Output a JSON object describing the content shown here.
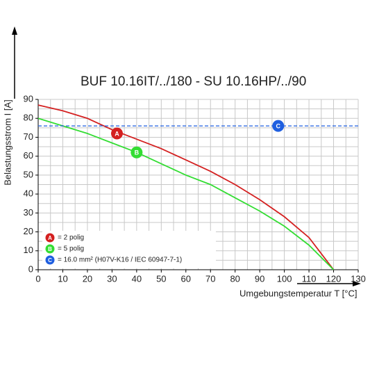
{
  "chart_data": {
    "type": "line",
    "title": "BUF 10.16IT/../180 - SU 10.16HP/../90",
    "x_label": "Umgebungstemperatur T [°C]",
    "y_label": "Belastungsstrom I [A]",
    "xlim": [
      0,
      130
    ],
    "ylim": [
      0,
      90
    ],
    "xticks": [
      0,
      10,
      20,
      30,
      40,
      50,
      60,
      70,
      80,
      90,
      100,
      110,
      120,
      130
    ],
    "yticks": [
      0,
      10,
      20,
      30,
      40,
      50,
      60,
      70,
      80,
      90
    ],
    "grid": true,
    "legend": "lower left",
    "series": [
      {
        "name": "= 2 polig",
        "color": "#d42020",
        "marker": {
          "label": "A",
          "x": 32,
          "y": 72
        },
        "x": [
          0,
          10,
          20,
          30,
          40,
          50,
          60,
          70,
          80,
          90,
          100,
          110,
          120
        ],
        "values": [
          87,
          84,
          80,
          74,
          69,
          64,
          58,
          52,
          45,
          37,
          28,
          17,
          0
        ]
      },
      {
        "name": "= 5 polig",
        "color": "#33dd33",
        "marker": {
          "label": "B",
          "x": 40,
          "y": 62
        },
        "x": [
          0,
          10,
          20,
          30,
          40,
          50,
          60,
          70,
          80,
          90,
          100,
          110,
          120
        ],
        "values": [
          80,
          76,
          72,
          67,
          62,
          56,
          50,
          45,
          38,
          31,
          23,
          13,
          0
        ]
      },
      {
        "name": "= 16.0 mm² (H07V-K16 / IEC 60947-7-1)",
        "color": "#1f5fe0",
        "dashed": true,
        "marker": {
          "label": "C",
          "x": 97.5,
          "y": 76
        },
        "x": [
          0,
          130
        ],
        "values": [
          76,
          76
        ]
      }
    ]
  }
}
